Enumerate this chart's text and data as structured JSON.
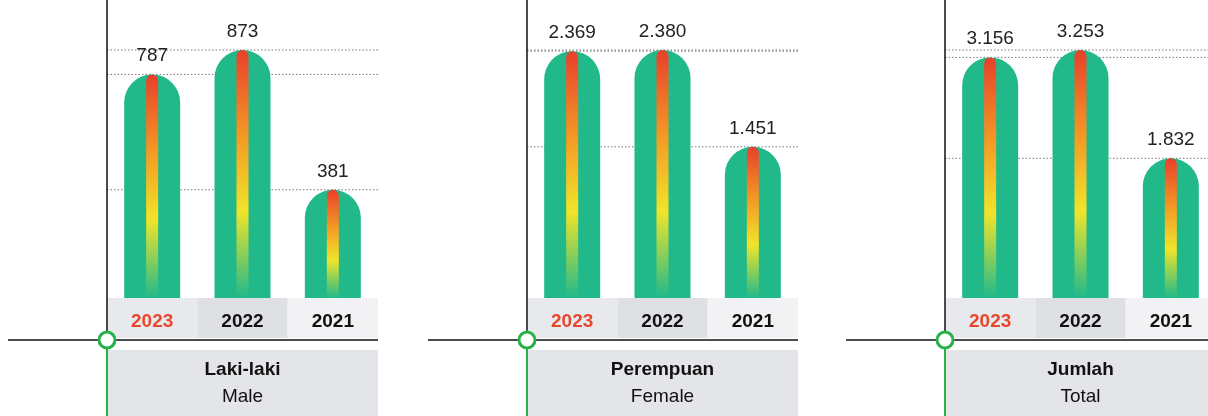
{
  "chart_data": [
    {
      "type": "bar",
      "title": "Laki-laki",
      "subtitle": "Male",
      "categories": [
        "2023",
        "2022",
        "2021"
      ],
      "values": [
        787,
        873,
        381
      ],
      "value_labels": [
        "787",
        "873",
        "381"
      ],
      "color": "#21b98a",
      "ref_lines": [
        {
          "axis": "y",
          "value": 873,
          "line_style": "dotted"
        },
        {
          "axis": "y",
          "value": 787,
          "line_style": "dotted"
        },
        {
          "axis": "y",
          "value": 381,
          "line_style": "dotted"
        }
      ]
    },
    {
      "type": "bar",
      "title": "Perempuan",
      "subtitle": "Female",
      "categories": [
        "2023",
        "2022",
        "2021"
      ],
      "values": [
        2369,
        2380,
        1451
      ],
      "value_labels": [
        "2.369",
        "2.380",
        "1.451"
      ],
      "color": "#21b98a",
      "ref_lines": [
        {
          "axis": "y",
          "value": 2380,
          "line_style": "dotted"
        },
        {
          "axis": "y",
          "value": 2369,
          "line_style": "dotted"
        },
        {
          "axis": "y",
          "value": 1451,
          "line_style": "dotted"
        }
      ]
    },
    {
      "type": "bar",
      "title": "Jumlah",
      "subtitle": "Total",
      "categories": [
        "2023",
        "2022",
        "2021"
      ],
      "values": [
        3156,
        3253,
        1832
      ],
      "value_labels": [
        "3.156",
        "3.253",
        "1.832"
      ],
      "color": "#21b98a",
      "ref_lines": [
        {
          "axis": "y",
          "value": 3253,
          "line_style": "dotted"
        },
        {
          "axis": "y",
          "value": 3156,
          "line_style": "dotted"
        },
        {
          "axis": "y",
          "value": 1832,
          "line_style": "dotted"
        }
      ]
    }
  ]
}
